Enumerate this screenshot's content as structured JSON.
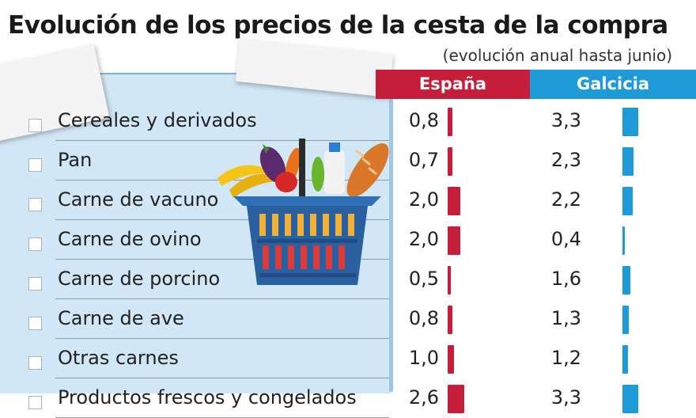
{
  "title": "Evolución de los precios de la cesta de la compra",
  "subtitle": "(evolución anual hasta junio)",
  "colors": {
    "espana": "#c41e3a",
    "galicia": "#1e9ad6",
    "notepad": "#d2e7f6"
  },
  "chart_data": {
    "type": "bar",
    "orientation": "horizontal",
    "title": "Evolución de los precios de la cesta de la compra",
    "subtitle": "(evolución anual hasta junio)",
    "categories": [
      "Cereales y derivados",
      "Pan",
      "Carne de vacuno",
      "Carne de ovino",
      "Carne de porcino",
      "Carne de ave",
      "Otras carnes",
      "Productos frescos y congelados"
    ],
    "series": [
      {
        "name": "España",
        "values": [
          0.8,
          0.7,
          2.0,
          2.0,
          0.5,
          0.8,
          1.0,
          2.6
        ]
      },
      {
        "name": "Galcicia",
        "values": [
          3.3,
          2.3,
          2.2,
          0.4,
          1.6,
          1.3,
          1.2,
          3.3
        ]
      }
    ],
    "value_labels": {
      "espana": [
        "0,8",
        "0,7",
        "2,0",
        "2,0",
        "0,5",
        "0,8",
        "1,0",
        "2,6"
      ],
      "galicia": [
        "3,3",
        "2,3",
        "2,2",
        "0,4",
        "1,6",
        "1,3",
        "1,2",
        "3,3"
      ]
    }
  }
}
